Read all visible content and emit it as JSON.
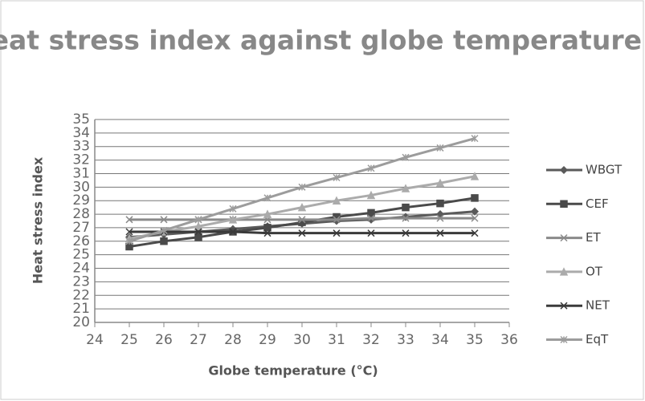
{
  "chart_data": {
    "type": "line",
    "title": "Heat stress index against globe temperature",
    "xlabel": "Globe temperature (°C)",
    "ylabel": "Heat stress index",
    "x": [
      25,
      26,
      27,
      28,
      29,
      30,
      31,
      32,
      33,
      34,
      35
    ],
    "series": [
      {
        "name": "WBGT",
        "color": "#5a5a5a",
        "marker": "diamond",
        "values": [
          26.3,
          26.5,
          26.7,
          26.9,
          27.1,
          27.3,
          27.5,
          27.6,
          27.8,
          28.0,
          28.2
        ]
      },
      {
        "name": "CEF",
        "color": "#4a4a4a",
        "marker": "square",
        "values": [
          25.6,
          26.0,
          26.3,
          26.7,
          27.0,
          27.4,
          27.8,
          28.1,
          28.5,
          28.8,
          29.2
        ]
      },
      {
        "name": "ET",
        "color": "#8a8a8a",
        "marker": "x",
        "values": [
          27.6,
          27.6,
          27.6,
          27.6,
          27.6,
          27.6,
          27.6,
          27.7,
          27.7,
          27.7,
          27.7
        ]
      },
      {
        "name": "OT",
        "color": "#ababab",
        "marker": "triangle",
        "values": [
          26.2,
          26.7,
          27.1,
          27.6,
          28.0,
          28.5,
          29.0,
          29.4,
          29.9,
          30.3,
          30.8
        ]
      },
      {
        "name": "NET",
        "color": "#3a3a3a",
        "marker": "x",
        "values": [
          26.7,
          26.7,
          26.7,
          26.7,
          26.6,
          26.6,
          26.6,
          26.6,
          26.6,
          26.6,
          26.6
        ]
      },
      {
        "name": "EqT",
        "color": "#9c9c9c",
        "marker": "star",
        "values": [
          26.0,
          26.8,
          27.6,
          28.4,
          29.2,
          30.0,
          30.7,
          31.4,
          32.2,
          32.9,
          33.6
        ]
      }
    ],
    "xlim": [
      24,
      36
    ],
    "xticks": [
      24,
      25,
      26,
      27,
      28,
      29,
      30,
      31,
      32,
      33,
      34,
      35,
      36
    ],
    "ylim": [
      20,
      35
    ],
    "yticks": [
      20,
      21,
      22,
      23,
      24,
      25,
      26,
      27,
      28,
      29,
      30,
      31,
      32,
      33,
      34,
      35
    ],
    "grid": true,
    "legend": "right"
  }
}
